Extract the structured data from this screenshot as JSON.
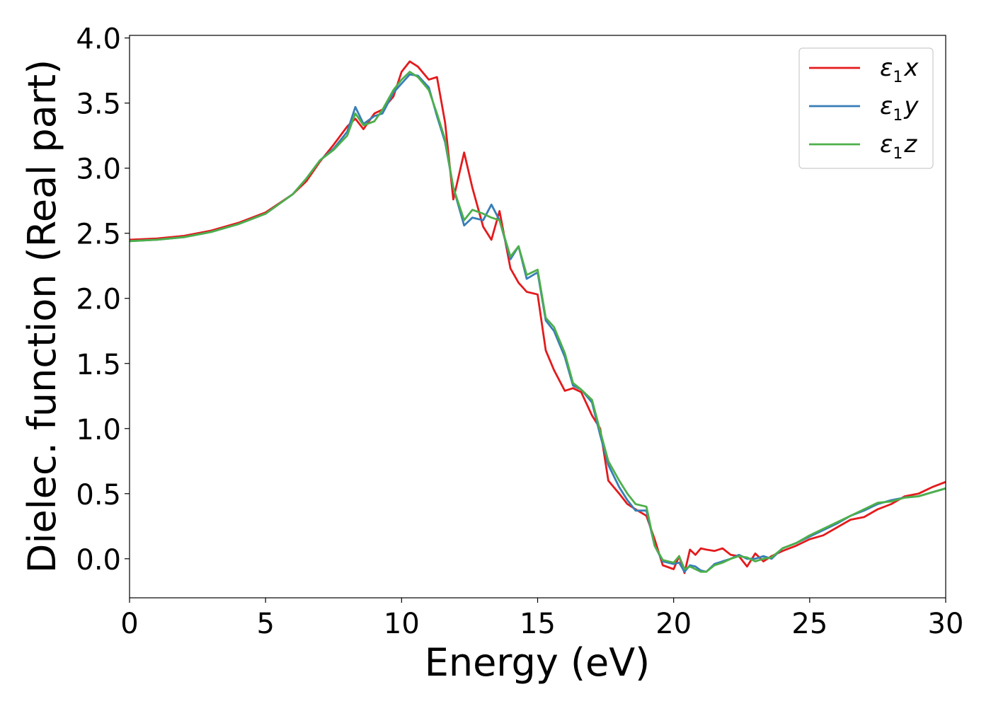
{
  "chart_data": {
    "type": "line",
    "title": "",
    "xlabel": "Energy (eV)",
    "ylabel": "Dielec. function (Real part)",
    "xlim": [
      0,
      30
    ],
    "ylim": [
      -0.3,
      4.02
    ],
    "xticks": [
      0,
      5,
      10,
      15,
      20,
      25,
      30
    ],
    "xtick_labels": [
      "0",
      "5",
      "10",
      "15",
      "20",
      "25",
      "30"
    ],
    "yticks": [
      0.0,
      0.5,
      1.0,
      1.5,
      2.0,
      2.5,
      3.0,
      3.5,
      4.0
    ],
    "ytick_labels": [
      "0.0",
      "0.5",
      "1.0",
      "1.5",
      "2.0",
      "2.5",
      "3.0",
      "3.5",
      "4.0"
    ],
    "grid": false,
    "legend_position": "top-right",
    "series": [
      {
        "name": "ε1x",
        "legend_base": "ε",
        "legend_sub": "1",
        "legend_var": "x",
        "color": "#e41a1c",
        "x": [
          0,
          1,
          2,
          3,
          4,
          5,
          6,
          6.5,
          7,
          7.5,
          8,
          8.3,
          8.6,
          9,
          9.3,
          9.7,
          10,
          10.3,
          10.6,
          11,
          11.3,
          11.6,
          11.9,
          12.3,
          12.6,
          13,
          13.3,
          13.6,
          14,
          14.3,
          14.6,
          15,
          15.3,
          15.6,
          16,
          16.3,
          16.6,
          17,
          17.3,
          17.6,
          18,
          18.3,
          18.6,
          19,
          19.3,
          19.6,
          20,
          20.2,
          20.4,
          20.6,
          20.8,
          21,
          21.2,
          21.5,
          21.8,
          22.1,
          22.4,
          22.7,
          23,
          23.3,
          23.6,
          24,
          24.5,
          25,
          25.5,
          26,
          26.5,
          27,
          27.5,
          28,
          28.5,
          29,
          29.5,
          30
        ],
        "values": [
          2.45,
          2.46,
          2.48,
          2.52,
          2.58,
          2.66,
          2.8,
          2.9,
          3.05,
          3.18,
          3.32,
          3.38,
          3.3,
          3.42,
          3.45,
          3.55,
          3.74,
          3.82,
          3.78,
          3.68,
          3.7,
          3.35,
          2.76,
          3.12,
          2.85,
          2.55,
          2.45,
          2.67,
          2.23,
          2.12,
          2.05,
          2.03,
          1.6,
          1.45,
          1.29,
          1.31,
          1.28,
          1.1,
          1.0,
          0.6,
          0.5,
          0.42,
          0.38,
          0.33,
          0.15,
          -0.05,
          -0.08,
          0.02,
          -0.11,
          0.07,
          0.03,
          0.08,
          0.07,
          0.06,
          0.08,
          0.03,
          0.02,
          -0.06,
          0.04,
          -0.02,
          0.02,
          0.06,
          0.1,
          0.15,
          0.18,
          0.24,
          0.3,
          0.32,
          0.38,
          0.42,
          0.48,
          0.5,
          0.55,
          0.59
        ]
      },
      {
        "name": "ε1y",
        "legend_base": "ε",
        "legend_sub": "1",
        "legend_var": "y",
        "color": "#377eb8",
        "x": [
          0,
          1,
          2,
          3,
          4,
          5,
          6,
          6.5,
          7,
          7.5,
          8,
          8.3,
          8.6,
          9,
          9.3,
          9.7,
          10,
          10.3,
          10.6,
          11,
          11.3,
          11.6,
          11.9,
          12.3,
          12.6,
          13,
          13.3,
          13.6,
          14,
          14.3,
          14.6,
          15,
          15.3,
          15.6,
          16,
          16.3,
          16.6,
          17,
          17.3,
          17.6,
          18,
          18.3,
          18.6,
          19,
          19.3,
          19.6,
          20,
          20.2,
          20.4,
          20.6,
          20.8,
          21,
          21.2,
          21.5,
          21.8,
          22.1,
          22.4,
          22.7,
          23,
          23.3,
          23.6,
          24,
          24.5,
          25,
          25.5,
          26,
          26.5,
          27,
          27.5,
          28,
          28.5,
          29,
          29.5,
          30
        ],
        "values": [
          2.44,
          2.45,
          2.47,
          2.51,
          2.57,
          2.65,
          2.8,
          2.92,
          3.06,
          3.15,
          3.28,
          3.47,
          3.34,
          3.4,
          3.42,
          3.58,
          3.65,
          3.72,
          3.71,
          3.62,
          3.4,
          3.2,
          2.85,
          2.56,
          2.62,
          2.6,
          2.72,
          2.6,
          2.3,
          2.4,
          2.15,
          2.2,
          1.83,
          1.75,
          1.55,
          1.33,
          1.3,
          1.2,
          0.95,
          0.72,
          0.55,
          0.45,
          0.37,
          0.37,
          0.1,
          -0.02,
          -0.04,
          -0.03,
          -0.1,
          -0.05,
          -0.06,
          -0.09,
          -0.1,
          -0.04,
          -0.02,
          0.0,
          0.03,
          0.0,
          0.0,
          0.02,
          0.0,
          0.08,
          0.12,
          0.17,
          0.22,
          0.27,
          0.33,
          0.37,
          0.42,
          0.45,
          0.47,
          0.48,
          0.51,
          0.54
        ]
      },
      {
        "name": "ε1z",
        "legend_base": "ε",
        "legend_sub": "1",
        "legend_var": "z",
        "color": "#4daf4a",
        "x": [
          0,
          1,
          2,
          3,
          4,
          5,
          6,
          6.5,
          7,
          7.5,
          8,
          8.3,
          8.6,
          9,
          9.3,
          9.7,
          10,
          10.3,
          10.6,
          11,
          11.3,
          11.6,
          11.9,
          12.3,
          12.6,
          13,
          13.3,
          13.6,
          14,
          14.3,
          14.6,
          15,
          15.3,
          15.6,
          16,
          16.3,
          16.6,
          17,
          17.3,
          17.6,
          18,
          18.3,
          18.6,
          19,
          19.3,
          19.6,
          20,
          20.2,
          20.4,
          20.6,
          20.8,
          21,
          21.2,
          21.5,
          21.8,
          22.1,
          22.4,
          22.7,
          23,
          23.3,
          23.6,
          24,
          24.5,
          25,
          25.5,
          26,
          26.5,
          27,
          27.5,
          28,
          28.5,
          29,
          29.5,
          30
        ],
        "values": [
          2.44,
          2.45,
          2.47,
          2.51,
          2.57,
          2.65,
          2.8,
          2.92,
          3.06,
          3.14,
          3.25,
          3.42,
          3.33,
          3.36,
          3.45,
          3.6,
          3.68,
          3.74,
          3.7,
          3.6,
          3.42,
          3.22,
          2.85,
          2.6,
          2.68,
          2.65,
          2.62,
          2.6,
          2.32,
          2.4,
          2.18,
          2.22,
          1.85,
          1.78,
          1.58,
          1.35,
          1.3,
          1.22,
          0.98,
          0.75,
          0.6,
          0.5,
          0.42,
          0.4,
          0.1,
          -0.01,
          -0.03,
          0.02,
          -0.08,
          -0.06,
          -0.08,
          -0.1,
          -0.1,
          -0.05,
          -0.03,
          0.0,
          0.02,
          0.01,
          -0.02,
          0.0,
          0.01,
          0.08,
          0.12,
          0.18,
          0.23,
          0.28,
          0.33,
          0.38,
          0.43,
          0.44,
          0.47,
          0.48,
          0.51,
          0.54
        ]
      }
    ]
  }
}
